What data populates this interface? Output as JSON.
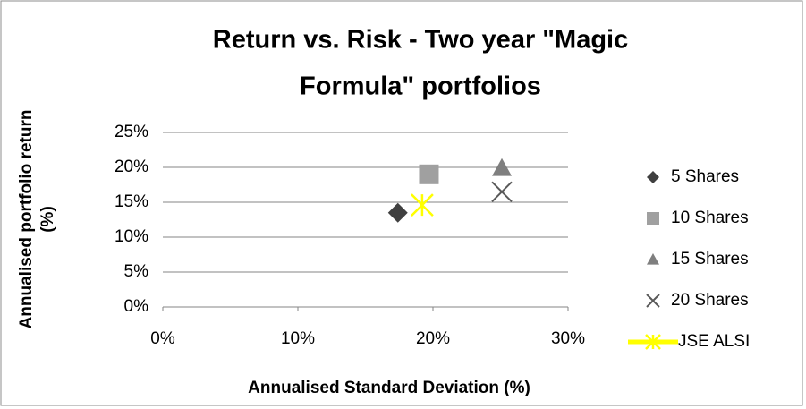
{
  "chart_data": {
    "type": "scatter",
    "title": [
      "Return vs. Risk - Two year \"Magic",
      "Formula\" portfolios"
    ],
    "x_label": "Annualised Standard Deviation (%)",
    "y_label": [
      "Annualised portfolio return",
      "(%)"
    ],
    "xlim": [
      0,
      30
    ],
    "xticks": [
      {
        "value": 0,
        "label": "0%"
      },
      {
        "value": 10,
        "label": "10%"
      },
      {
        "value": 20,
        "label": "20%"
      },
      {
        "value": 30,
        "label": "30%"
      }
    ],
    "ylim": [
      0,
      25
    ],
    "yticks": [
      {
        "value": 0,
        "label": "0%"
      },
      {
        "value": 5,
        "label": "5%"
      },
      {
        "value": 10,
        "label": "10%"
      },
      {
        "value": 15,
        "label": "15%"
      },
      {
        "value": 20,
        "label": "20%"
      },
      {
        "value": 25,
        "label": "25%"
      }
    ],
    "grid": true,
    "legend": "right",
    "series": [
      {
        "name": "5 Shares",
        "color": "#404040",
        "marker": "diamond",
        "x": [
          17.4
        ],
        "values": [
          13.5
        ]
      },
      {
        "name": "10 Shares",
        "color": "#a0a0a0",
        "marker": "square",
        "x": [
          19.7
        ],
        "values": [
          19.0
        ]
      },
      {
        "name": "15 Shares",
        "color": "#7f7f7f",
        "marker": "triangle",
        "x": [
          25.1
        ],
        "values": [
          19.9
        ]
      },
      {
        "name": "20 Shares",
        "color": "#595959",
        "marker": "x",
        "x": [
          25.1
        ],
        "values": [
          16.5
        ]
      },
      {
        "name": "JSE ALSI",
        "color": "#ffff00",
        "marker": "star",
        "x": [
          19.2
        ],
        "values": [
          14.6
        ]
      }
    ]
  }
}
